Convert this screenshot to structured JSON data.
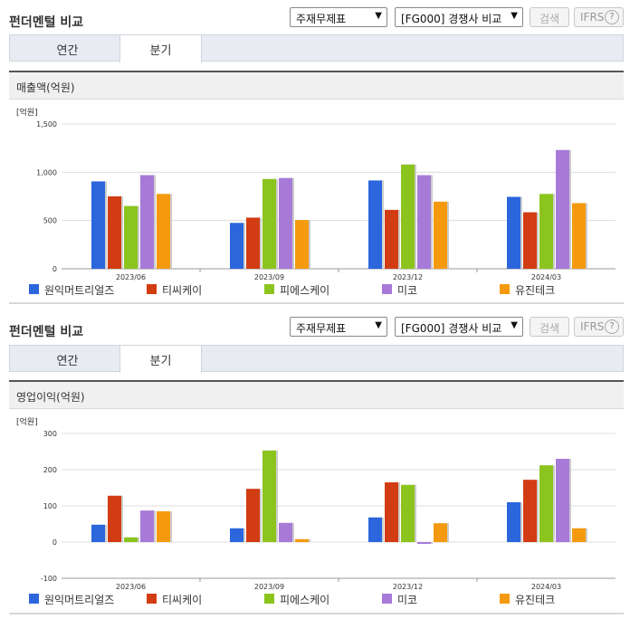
{
  "sections": [
    {
      "title": "펀더멘털 비교",
      "select_statement": "주재무제표",
      "select_peer": "[FG000] 경쟁사 비교",
      "search_label": "검색",
      "ifrs_label": "IFRS",
      "help_label": "?",
      "tabs": [
        "연간",
        "분기"
      ],
      "active_tab": "분기",
      "panel_title": "매출액(억원)"
    },
    {
      "title": "펀더멘털 비교",
      "select_statement": "주재무제표",
      "select_peer": "[FG000] 경쟁사 비교",
      "search_label": "검색",
      "ifrs_label": "IFRS",
      "help_label": "?",
      "tabs": [
        "연간",
        "분기"
      ],
      "active_tab": "분기",
      "panel_title": "영업이익(억원)"
    }
  ],
  "chart_data": [
    {
      "type": "bar",
      "unit_label": "[억원]",
      "categories": [
        "2023/06",
        "2023/09",
        "2023/12",
        "2024/03"
      ],
      "ylim": [
        0,
        1500
      ],
      "yticks": [
        0,
        500,
        1000,
        1500
      ],
      "ytick_labels": [
        "0",
        "500",
        "1,000",
        "1,500"
      ],
      "grid": true,
      "legend_position": "bottom",
      "series": [
        {
          "name": "원익머트리얼즈",
          "color": "#2b66dd",
          "values": [
            905,
            475,
            915,
            745
          ]
        },
        {
          "name": "티씨케이",
          "color": "#d23c12",
          "values": [
            750,
            530,
            610,
            585
          ]
        },
        {
          "name": "피에스케이",
          "color": "#8cc41e",
          "values": [
            650,
            930,
            1080,
            775
          ]
        },
        {
          "name": "미코",
          "color": "#a77ad8",
          "values": [
            970,
            940,
            970,
            1230
          ]
        },
        {
          "name": "유진테크",
          "color": "#f59a0e",
          "values": [
            775,
            505,
            695,
            680
          ]
        }
      ]
    },
    {
      "type": "bar",
      "unit_label": "[억원]",
      "categories": [
        "2023/06",
        "2023/09",
        "2023/12",
        "2024/03"
      ],
      "ylim": [
        -100,
        300
      ],
      "yticks": [
        -100,
        0,
        100,
        200,
        300
      ],
      "ytick_labels": [
        "-100",
        "0",
        "100",
        "200",
        "300"
      ],
      "grid": true,
      "legend_position": "bottom",
      "series": [
        {
          "name": "원익머트리얼즈",
          "color": "#2b66dd",
          "values": [
            48,
            38,
            68,
            110
          ]
        },
        {
          "name": "티씨케이",
          "color": "#d23c12",
          "values": [
            128,
            147,
            165,
            172
          ]
        },
        {
          "name": "피에스케이",
          "color": "#8cc41e",
          "values": [
            13,
            253,
            158,
            212
          ]
        },
        {
          "name": "미코",
          "color": "#a77ad8",
          "values": [
            87,
            53,
            -5,
            230
          ]
        },
        {
          "name": "유진테크",
          "color": "#f59a0e",
          "values": [
            85,
            8,
            52,
            38
          ]
        }
      ]
    }
  ]
}
